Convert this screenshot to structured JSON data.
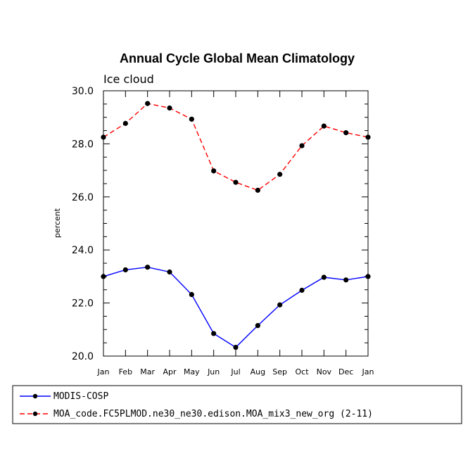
{
  "chart_data": {
    "type": "line",
    "title": "Annual Cycle Global Mean Climatology",
    "subtitle": "Ice cloud",
    "xlabel": "",
    "ylabel": "percent",
    "categories": [
      "Jan",
      "Feb",
      "Mar",
      "Apr",
      "May",
      "Jun",
      "Jul",
      "Aug",
      "Sep",
      "Oct",
      "Nov",
      "Dec",
      "Jan"
    ],
    "ylim": [
      20.0,
      30.0
    ],
    "yticks": [
      "20.0",
      "22.0",
      "24.0",
      "26.0",
      "28.0",
      "30.0"
    ],
    "series": [
      {
        "name": "MODIS-COSP",
        "color": "#0000ff",
        "dash": "solid",
        "values": [
          23.0,
          23.25,
          23.35,
          23.17,
          22.32,
          20.85,
          20.33,
          21.15,
          21.93,
          22.48,
          22.97,
          22.87,
          23.0
        ]
      },
      {
        "name": "MOA_code.FC5PLMOD.ne30_ne30.edison.MOA_mix3_new_org (2-11)",
        "color": "#ff0000",
        "dash": "dashed",
        "values": [
          28.25,
          28.77,
          29.52,
          29.35,
          28.93,
          26.98,
          26.55,
          26.25,
          26.85,
          27.93,
          28.67,
          28.42,
          28.25
        ]
      }
    ],
    "legend_position": "bottom-left"
  }
}
